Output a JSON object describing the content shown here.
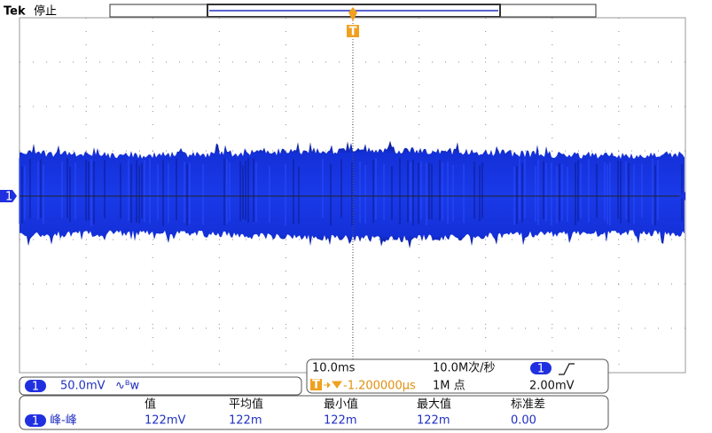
{
  "header": {
    "brand": "Tek",
    "status": "停止"
  },
  "display": {
    "channel_marker": "1",
    "trigger_marker": "T"
  },
  "channel": {
    "number": "1",
    "scale": "50.0mV",
    "bandwidth_icon": "∿ᴮw"
  },
  "acquisition": {
    "time_scale": "10.0ms",
    "sample_rate": "10.0M次/秒",
    "trigger_channel": "1",
    "trigger_level": "2.00mV",
    "trigger_position": "-1.200000µs",
    "record_length": "1M 点"
  },
  "measurements": {
    "headers": [
      "值",
      "平均值",
      "最小值",
      "最大值",
      "标准差"
    ],
    "rows": [
      {
        "channel": "1",
        "name": "峰-峰",
        "values": [
          "122mV",
          "122m",
          "122m",
          "122m",
          "0.00"
        ]
      }
    ]
  }
}
